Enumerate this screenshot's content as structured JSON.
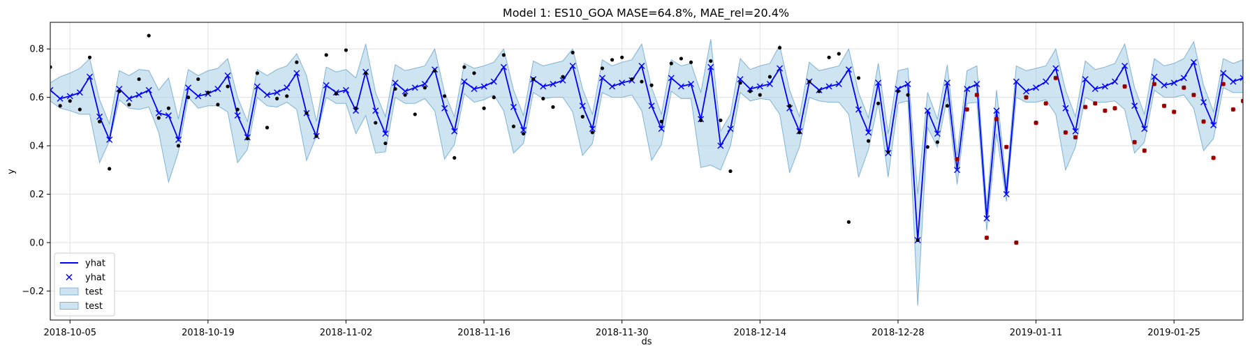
{
  "chart_data": {
    "type": "line",
    "title": "Model 1: ES10_GOA MASE=64.8%, MAE_rel=20.4%",
    "xlabel": "ds",
    "ylabel": "y",
    "x_start": "2018-10-03",
    "x_end": "2019-02-01",
    "xlim": [
      "2018-10-03",
      "2019-02-01"
    ],
    "ylim": [
      -0.32,
      0.91
    ],
    "grid": true,
    "x_ticks": [
      "2018-10-05",
      "2018-10-19",
      "2018-11-02",
      "2018-11-16",
      "2018-11-30",
      "2018-12-14",
      "2018-12-28",
      "2019-01-11",
      "2019-01-25"
    ],
    "y_ticks": [
      -0.2,
      0.0,
      0.2,
      0.4,
      0.6,
      0.8
    ],
    "y_tick_labels": [
      "−0.2",
      "0.0",
      "0.2",
      "0.4",
      "0.6",
      "0.8"
    ],
    "legend": {
      "position": "lower-left",
      "entries": [
        {
          "label": "yhat",
          "kind": "line",
          "color": "#0000ff"
        },
        {
          "label": "yhat",
          "kind": "marker-x",
          "color": "#0000ff"
        },
        {
          "label": "test",
          "kind": "patch",
          "color": "#a6cee3"
        },
        {
          "label": "test",
          "kind": "patch",
          "color": "#a6cee3"
        }
      ]
    },
    "colors": {
      "yhat": "#0000ff",
      "band": "#a6cee3",
      "band_edge": "#7fb3d5",
      "actual": "#000000",
      "test_actual": "#c00000"
    },
    "series": [
      {
        "name": "yhat",
        "kind": "forecast",
        "values": [
          0.63,
          0.595,
          0.605,
          0.62,
          0.685,
          0.52,
          0.425,
          0.635,
          0.595,
          0.61,
          0.63,
          0.535,
          0.525,
          0.425,
          0.64,
          0.605,
          0.615,
          0.635,
          0.69,
          0.525,
          0.435,
          0.645,
          0.61,
          0.62,
          0.64,
          0.7,
          0.535,
          0.44,
          0.65,
          0.62,
          0.63,
          0.545,
          0.705,
          0.545,
          0.45,
          0.66,
          0.625,
          0.64,
          0.655,
          0.715,
          0.555,
          0.46,
          0.665,
          0.635,
          0.645,
          0.665,
          0.725,
          0.56,
          0.465,
          0.675,
          0.645,
          0.655,
          0.67,
          0.73,
          0.565,
          0.47,
          0.68,
          0.645,
          0.66,
          0.67,
          0.73,
          0.565,
          0.47,
          0.68,
          0.645,
          0.655,
          0.51,
          0.725,
          0.4,
          0.47,
          0.675,
          0.635,
          0.645,
          0.655,
          0.72,
          0.555,
          0.46,
          0.665,
          0.63,
          0.645,
          0.655,
          0.715,
          0.55,
          0.455,
          0.66,
          0.37,
          0.635,
          0.655,
          0.01,
          0.545,
          0.45,
          0.66,
          0.3,
          0.635,
          0.655,
          0.1,
          0.545,
          0.2,
          0.665,
          0.625,
          0.64,
          0.665,
          0.72,
          0.555,
          0.46,
          0.675,
          0.635,
          0.645,
          0.665,
          0.73,
          0.565,
          0.47,
          0.685,
          0.65,
          0.66,
          0.68,
          0.745,
          0.58,
          0.485,
          0.7,
          0.665,
          0.68,
          0.695
        ]
      },
      {
        "name": "test",
        "kind": "interval",
        "lower": [
          0.585,
          0.555,
          0.545,
          0.53,
          0.53,
          0.33,
          0.42,
          0.59,
          0.555,
          0.55,
          0.56,
          0.455,
          0.25,
          0.375,
          0.6,
          0.555,
          0.565,
          0.565,
          0.54,
          0.33,
          0.385,
          0.6,
          0.565,
          0.56,
          0.58,
          0.55,
          0.34,
          0.44,
          0.6,
          0.575,
          0.575,
          0.45,
          0.525,
          0.37,
          0.375,
          0.6,
          0.575,
          0.575,
          0.595,
          0.545,
          0.345,
          0.405,
          0.615,
          0.58,
          0.59,
          0.61,
          0.545,
          0.37,
          0.41,
          0.62,
          0.595,
          0.6,
          0.6,
          0.54,
          0.36,
          0.41,
          0.62,
          0.6,
          0.6,
          0.61,
          0.545,
          0.34,
          0.405,
          0.625,
          0.595,
          0.595,
          0.31,
          0.32,
          0.3,
          0.4,
          0.62,
          0.585,
          0.595,
          0.59,
          0.53,
          0.29,
          0.395,
          0.6,
          0.585,
          0.58,
          0.58,
          0.53,
          0.27,
          0.385,
          0.58,
          0.27,
          0.575,
          0.585,
          -0.26,
          0.475,
          0.395,
          0.6,
          0.24,
          0.575,
          0.58,
          0.05,
          0.45,
          0.17,
          0.6,
          0.58,
          0.58,
          0.59,
          0.53,
          0.3,
          0.395,
          0.6,
          0.58,
          0.58,
          0.585,
          0.55,
          0.37,
          0.415,
          0.63,
          0.6,
          0.6,
          0.61,
          0.555,
          0.38,
          0.43,
          0.64,
          0.62,
          0.62,
          0.63
        ],
        "upper": [
          0.66,
          0.685,
          0.7,
          0.72,
          0.76,
          0.59,
          0.49,
          0.71,
          0.69,
          0.715,
          0.71,
          0.63,
          0.68,
          0.51,
          0.715,
          0.69,
          0.71,
          0.72,
          0.76,
          0.6,
          0.5,
          0.715,
          0.69,
          0.715,
          0.73,
          0.78,
          0.69,
          0.5,
          0.725,
          0.705,
          0.715,
          0.68,
          0.82,
          0.62,
          0.52,
          0.735,
          0.71,
          0.72,
          0.73,
          0.8,
          0.62,
          0.52,
          0.74,
          0.72,
          0.73,
          0.745,
          0.8,
          0.63,
          0.525,
          0.75,
          0.73,
          0.74,
          0.75,
          0.8,
          0.635,
          0.53,
          0.755,
          0.73,
          0.745,
          0.755,
          0.82,
          0.64,
          0.53,
          0.755,
          0.73,
          0.74,
          0.62,
          0.84,
          0.46,
          0.53,
          0.76,
          0.715,
          0.73,
          0.74,
          0.815,
          0.63,
          0.52,
          0.745,
          0.71,
          0.72,
          0.73,
          0.8,
          0.62,
          0.515,
          0.74,
          0.45,
          0.71,
          0.72,
          0.2,
          0.62,
          0.51,
          0.735,
          0.36,
          0.71,
          0.73,
          0.15,
          0.63,
          0.24,
          0.73,
          0.71,
          0.72,
          0.73,
          0.8,
          0.63,
          0.52,
          0.75,
          0.715,
          0.725,
          0.74,
          0.82,
          0.64,
          0.53,
          0.76,
          0.73,
          0.74,
          0.76,
          0.83,
          0.65,
          0.54,
          0.76,
          0.74,
          0.755,
          0.765
        ]
      },
      {
        "name": "actual",
        "kind": "observed",
        "points": [
          [
            0,
            0.725
          ],
          [
            1,
            0.565
          ],
          [
            2,
            0.585
          ],
          [
            3,
            0.55
          ],
          [
            4,
            0.765
          ],
          [
            5,
            0.5
          ],
          [
            6,
            0.305
          ],
          [
            7,
            0.625
          ],
          [
            8,
            0.57
          ],
          [
            9,
            0.675
          ],
          [
            10,
            0.855
          ],
          [
            11,
            0.515
          ],
          [
            12,
            0.555
          ],
          [
            13,
            0.4
          ],
          [
            14,
            0.6
          ],
          [
            15,
            0.675
          ],
          [
            16,
            0.62
          ],
          [
            17,
            0.57
          ],
          [
            18,
            0.645
          ],
          [
            19,
            0.55
          ],
          [
            20,
            0.43
          ],
          [
            21,
            0.7
          ],
          [
            22,
            0.475
          ],
          [
            23,
            0.595
          ],
          [
            24,
            0.605
          ],
          [
            25,
            0.745
          ],
          [
            26,
            0.535
          ],
          [
            27,
            0.44
          ],
          [
            28,
            0.775
          ],
          [
            29,
            0.615
          ],
          [
            30,
            0.795
          ],
          [
            31,
            0.555
          ],
          [
            32,
            0.7
          ],
          [
            33,
            0.495
          ],
          [
            34,
            0.41
          ],
          [
            35,
            0.635
          ],
          [
            36,
            0.61
          ],
          [
            37,
            0.53
          ],
          [
            38,
            0.64
          ],
          [
            39,
            0.71
          ],
          [
            40,
            0.605
          ],
          [
            41,
            0.35
          ],
          [
            42,
            0.725
          ],
          [
            43,
            0.7
          ],
          [
            44,
            0.555
          ],
          [
            45,
            0.6
          ],
          [
            46,
            0.775
          ],
          [
            47,
            0.48
          ],
          [
            48,
            0.45
          ],
          [
            49,
            0.675
          ],
          [
            50,
            0.595
          ],
          [
            51,
            0.56
          ],
          [
            52,
            0.685
          ],
          [
            53,
            0.785
          ],
          [
            54,
            0.52
          ],
          [
            55,
            0.455
          ],
          [
            56,
            0.72
          ],
          [
            57,
            0.755
          ],
          [
            58,
            0.765
          ],
          [
            59,
            0.675
          ],
          [
            60,
            0.665
          ],
          [
            61,
            0.65
          ],
          [
            62,
            0.5
          ],
          [
            63,
            0.74
          ],
          [
            64,
            0.76
          ],
          [
            65,
            0.745
          ],
          [
            66,
            0.505
          ],
          [
            67,
            0.75
          ],
          [
            68,
            0.505
          ],
          [
            69,
            0.295
          ],
          [
            70,
            0.66
          ],
          [
            71,
            0.625
          ],
          [
            72,
            0.61
          ],
          [
            73,
            0.685
          ],
          [
            74,
            0.805
          ],
          [
            75,
            0.565
          ],
          [
            76,
            0.455
          ],
          [
            77,
            0.665
          ],
          [
            78,
            0.625
          ],
          [
            79,
            0.765
          ],
          [
            80,
            0.78
          ],
          [
            81,
            0.085
          ],
          [
            82,
            0.68
          ],
          [
            83,
            0.42
          ],
          [
            84,
            0.575
          ],
          [
            85,
            0.375
          ],
          [
            86,
            0.625
          ],
          [
            87,
            0.61
          ],
          [
            88,
            0.01
          ],
          [
            89,
            0.395
          ],
          [
            90,
            0.415
          ],
          [
            91,
            0.565
          ]
        ]
      },
      {
        "name": "test actual",
        "kind": "test-observed",
        "points": [
          [
            92,
            0.345
          ],
          [
            93,
            0.55
          ],
          [
            94,
            0.61
          ],
          [
            95,
            0.02
          ],
          [
            96,
            0.51
          ],
          [
            97,
            0.395
          ],
          [
            98,
            0.0
          ],
          [
            99,
            0.6
          ],
          [
            100,
            0.495
          ],
          [
            101,
            0.575
          ],
          [
            102,
            0.68
          ],
          [
            103,
            0.455
          ],
          [
            104,
            0.435
          ],
          [
            105,
            0.56
          ],
          [
            106,
            0.575
          ],
          [
            107,
            0.545
          ],
          [
            108,
            0.555
          ],
          [
            109,
            0.645
          ],
          [
            110,
            0.415
          ],
          [
            111,
            0.38
          ],
          [
            112,
            0.655
          ],
          [
            113,
            0.565
          ],
          [
            114,
            0.54
          ],
          [
            115,
            0.64
          ],
          [
            116,
            0.61
          ],
          [
            117,
            0.5
          ],
          [
            118,
            0.35
          ],
          [
            119,
            0.655
          ],
          [
            120,
            0.55
          ],
          [
            121,
            0.585
          ],
          [
            122,
            0.71
          ]
        ]
      }
    ]
  }
}
